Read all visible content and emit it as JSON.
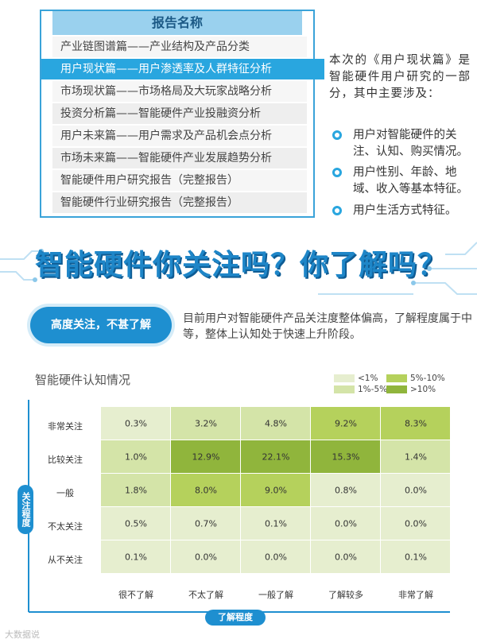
{
  "report_box": {
    "header": "报告名称",
    "items": [
      "产业链图谱篇——产业结构及产品分类",
      "用户现状篇——用户渗透率及人群特征分析",
      "市场现状篇——市场格局及大玩家战略分析",
      "投资分析篇——智能硬件产业投融资分析",
      "用户未来篇——用户需求及产品机会点分析",
      "市场未来篇——智能硬件产业发展趋势分析",
      "智能硬件用户研究报告（完整报告）",
      "智能硬件行业研究报告（完整报告）"
    ],
    "active_index": 1
  },
  "description": {
    "intro": "本次的《用户现状篇》是智能硬件用户研究的一部分，其中主要涉及：",
    "bullets": [
      "用户对智能硬件的关注、认知、购买情况。",
      "用户性别、年龄、地域、收入等基本特征。",
      "用户生活方式特征。"
    ]
  },
  "headline": "智能硬件你关注吗？你了解吗？",
  "badge": "高度关注，不甚了解",
  "intro_text": "目前用户对智能硬件产品关注度整体偏高，了解程度属于中等，整体上认知处于快速上升阶段。",
  "watermark": "大数据说",
  "colors": {
    "accent": "#1e8fd0",
    "lt1": "#e6eecf",
    "lt5": "#d4e4a8",
    "lt10": "#b5d15c",
    "gt10": "#90b53c"
  },
  "chart_data": {
    "type": "heatmap",
    "title": "智能硬件认知情况",
    "xlabel": "了解程度",
    "ylabel": "关注程度",
    "x_categories": [
      "很不了解",
      "不太了解",
      "一般了解",
      "了解较多",
      "非常了解"
    ],
    "y_categories": [
      "非常关注",
      "比较关注",
      "一般",
      "不太关注",
      "从不关注"
    ],
    "values": [
      [
        0.3,
        3.2,
        4.8,
        9.2,
        8.3
      ],
      [
        1.0,
        12.9,
        22.1,
        15.3,
        1.4
      ],
      [
        1.8,
        8.0,
        9.0,
        0.8,
        0.0
      ],
      [
        0.5,
        0.7,
        0.1,
        0.0,
        0.0
      ],
      [
        0.1,
        0.0,
        0.0,
        0.0,
        0.1
      ]
    ],
    "labels": [
      [
        "0.3%",
        "3.2%",
        "4.8%",
        "9.2%",
        "8.3%"
      ],
      [
        "1.0%",
        "12.9%",
        "22.1%",
        "15.3%",
        "1.4%"
      ],
      [
        "1.8%",
        "8.0%",
        "9.0%",
        "0.8%",
        "0.0%"
      ],
      [
        "0.5%",
        "0.7%",
        "0.1%",
        "0.0%",
        "0.0%"
      ],
      [
        "0.1%",
        "0.0%",
        "0.0%",
        "0.0%",
        "0.1%"
      ]
    ],
    "legend": [
      {
        "label": "<1%",
        "color_key": "lt1"
      },
      {
        "label": "5%-10%",
        "color_key": "lt10"
      },
      {
        "label": "1%-5%",
        "color_key": "lt5"
      },
      {
        "label": ">10%",
        "color_key": "gt10"
      }
    ]
  }
}
